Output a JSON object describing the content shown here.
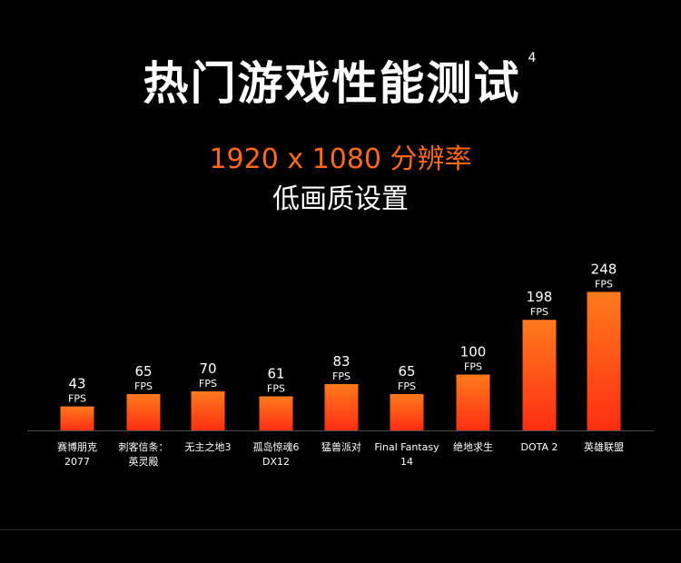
{
  "header": {
    "title": "热门游戏性能测试",
    "footnote": "4",
    "resolution": "1920 x 1080 分辨率",
    "quality": "低画质设置"
  },
  "colors": {
    "background": "#000000",
    "accent": "#ff6a1a",
    "bar_top": "#ff7a1c",
    "bar_bottom": "#ff2e12",
    "text": "#ffffff"
  },
  "chart_data": {
    "type": "bar",
    "unit": "FPS",
    "categories": [
      [
        "赛博朋克",
        "2077"
      ],
      [
        "刺客信条：",
        "英灵殿"
      ],
      [
        "无主之地3"
      ],
      [
        "孤岛惊魂6",
        "DX12"
      ],
      [
        "猛兽派对"
      ],
      [
        "Final Fantasy",
        "14"
      ],
      [
        "绝地求生"
      ],
      [
        "DOTA 2"
      ],
      [
        "英雄联盟"
      ]
    ],
    "values": [
      43,
      65,
      70,
      61,
      83,
      65,
      100,
      198,
      248
    ],
    "title": "",
    "xlabel": "",
    "ylabel": "",
    "grid": false
  }
}
